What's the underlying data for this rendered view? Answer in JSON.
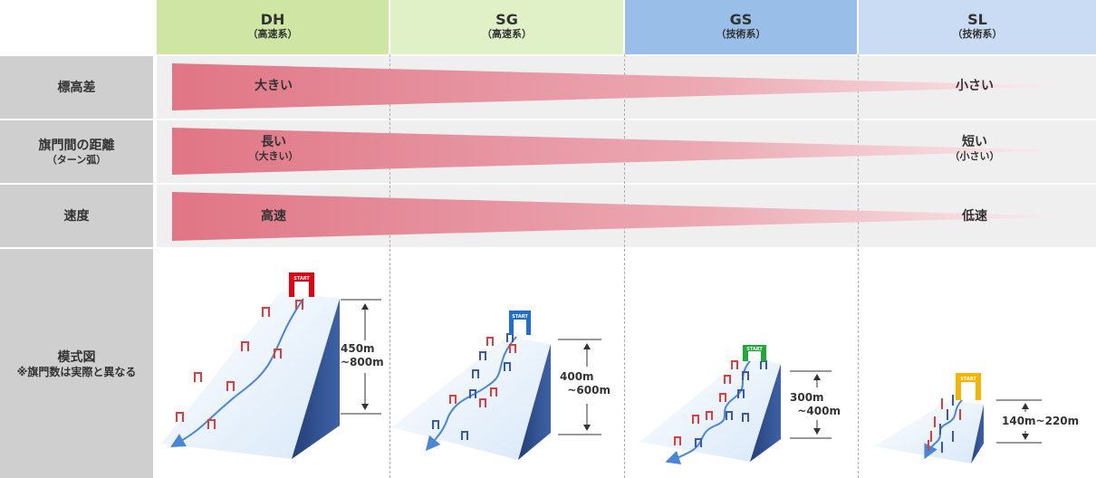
{
  "columns": [
    {
      "code": "DH",
      "type": "（高速系）",
      "bg": "#cfe5a3"
    },
    {
      "code": "SG",
      "type": "（高速系）",
      "bg": "#e1f1c7"
    },
    {
      "code": "GS",
      "type": "（技術系）",
      "bg": "#99bfe9"
    },
    {
      "code": "SL",
      "type": "（技術系）",
      "bg": "#c9dcf4"
    }
  ],
  "rows": [
    {
      "label": "標高差",
      "sub": "",
      "left": "大きい",
      "left_sub": "",
      "right": "小さい",
      "right_sub": ""
    },
    {
      "label": "旗門間の距離",
      "sub": "（ターン弧）",
      "left": "長い",
      "left_sub": "（大きい）",
      "right": "短い",
      "right_sub": "（小さい）"
    },
    {
      "label": "速度",
      "sub": "",
      "left": "高速",
      "left_sub": "",
      "right": "低速",
      "right_sub": ""
    }
  ],
  "diagram_row": {
    "label": "模式図",
    "sub": "※旗門数は実際と異なる"
  },
  "diagrams": [
    {
      "height_label": "450m\n~800m",
      "gate_color": "#e03c3c",
      "start_color": "#e60012",
      "start_text": "START"
    },
    {
      "height_label": "400m\n  ~600m",
      "gate_color": "#3a57b8",
      "start_color": "#1e6fd0",
      "start_text": "START"
    },
    {
      "height_label": "300m\n  ~400m",
      "gate_color": "#3a57b8",
      "start_color": "#22a83a",
      "start_text": "START"
    },
    {
      "height_label": "140m~220m",
      "gate_color": "#3a57b8",
      "start_color": "#f5b400",
      "start_text": "START"
    }
  ],
  "colors": {
    "wedge": "#e07585",
    "wedge_end": "#f7dde1",
    "row_label_bg": "#cfcfcf",
    "row_bg": "#efefef",
    "slope_side": "#2b4a86",
    "course": "#4a86d8"
  }
}
